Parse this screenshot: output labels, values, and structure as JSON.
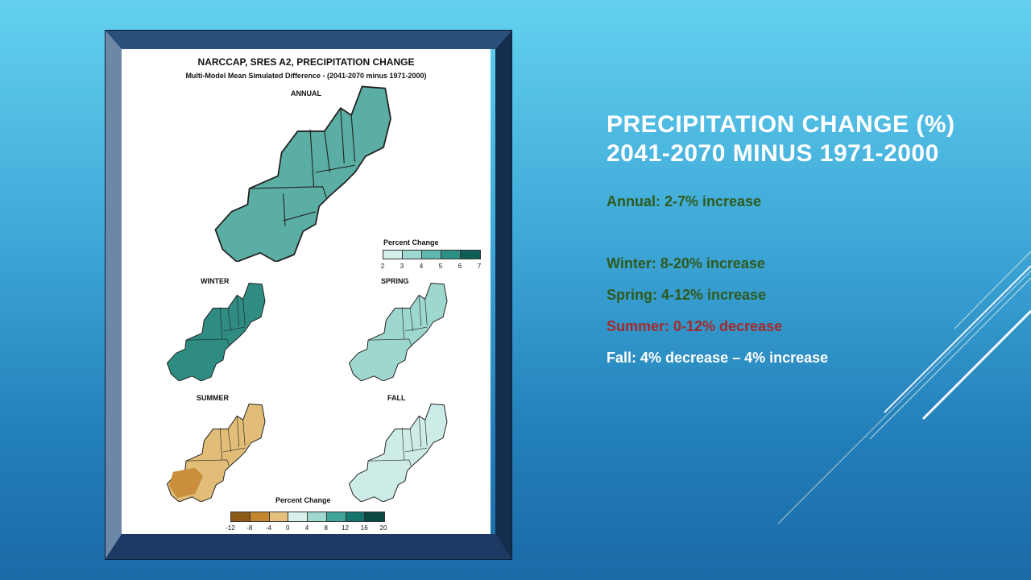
{
  "slide": {
    "title_line1": "PRECIPITATION CHANGE (%)",
    "title_line2": "2041-2070 MINUS 1971-2000",
    "colors": {
      "green_text": "#2e5a1c",
      "red_text": "#a52a2a",
      "white_text": "#ffffff"
    },
    "bullets": [
      {
        "text": "Annual: 2-7% increase",
        "color": "#2e5a1c"
      },
      {
        "text": "Winter: 8-20% increase",
        "color": "#2e5a1c"
      },
      {
        "text": "Spring: 4-12% increase",
        "color": "#2e5a1c"
      },
      {
        "text": "Summer: 0-12% decrease",
        "color": "#a52a2a"
      },
      {
        "text": "Fall: 4% decrease – 4% increase",
        "color": "#ffffff"
      }
    ]
  },
  "figure": {
    "title": "NARCCAP, SRES A2, PRECIPITATION CHANGE",
    "subtitle": "Multi-Model Mean Simulated Difference - (2041-2070 minus 1971-2000)",
    "panels": {
      "annual": "ANNUAL",
      "winter": "WINTER",
      "spring": "SPRING",
      "summer": "SUMMER",
      "fall": "FALL"
    },
    "legend_annual": {
      "title": "Percent Change",
      "ticks": [
        "2",
        "3",
        "4",
        "5",
        "6",
        "7"
      ],
      "colors": [
        "#d4efec",
        "#9fd8cf",
        "#5fb8ad",
        "#2e8f85",
        "#0f5f57"
      ]
    },
    "legend_seasonal": {
      "title": "Percent Change",
      "ticks": [
        "-12",
        "-8",
        "-4",
        "0",
        "4",
        "8",
        "12",
        "16",
        "20"
      ],
      "colors": [
        "#8c5a14",
        "#c4872f",
        "#e4c07c",
        "#d7f0ec",
        "#9fd8cf",
        "#3fa49a",
        "#15756c",
        "#0b4a44"
      ]
    },
    "map_colors": {
      "annual": "#5aaea3",
      "winter": "#2f8c82",
      "spring": "#9dd7ce",
      "summer": "#e2bd78",
      "fall": "#cdece7",
      "outline": "#222222"
    }
  }
}
